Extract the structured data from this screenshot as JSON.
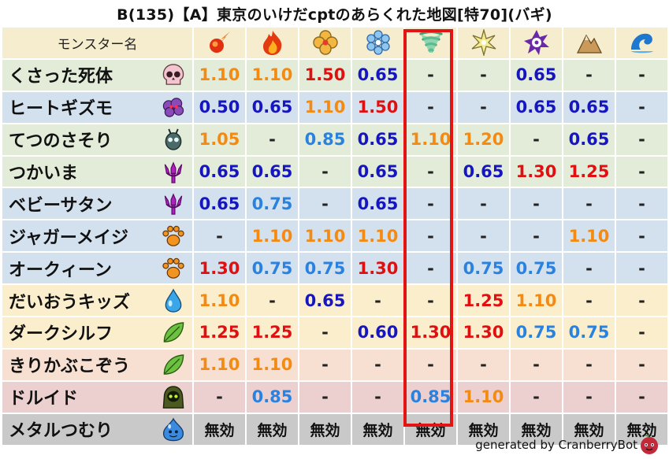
{
  "title": "B(135)【A】東京のいけだcptのあらくれた地図[特70](バギ)",
  "header": {
    "name_label": "モンスター名",
    "elements": [
      "fire-meteor-icon",
      "flame-icon",
      "clover-icon",
      "snowflake-icon",
      "tornado-icon",
      "burst-icon",
      "dark-spiral-icon",
      "mountain-icon",
      "wave-icon"
    ]
  },
  "highlight_column": 4,
  "rows": [
    {
      "name": "くさった死体",
      "bg": "#e3ecd8",
      "icon": "skull-icon",
      "cells": [
        [
          "1.10",
          "orange"
        ],
        [
          "1.10",
          "orange"
        ],
        [
          "1.50",
          "red"
        ],
        [
          "0.65",
          "navy"
        ],
        [
          "-",
          "dash"
        ],
        [
          "-",
          "dash"
        ],
        [
          "0.65",
          "navy"
        ],
        [
          "-",
          "dash"
        ],
        [
          "-",
          "dash"
        ]
      ]
    },
    {
      "name": "ヒートギズモ",
      "bg": "#d3e1ef",
      "icon": "purple-cloud-icon",
      "cells": [
        [
          "0.50",
          "navy"
        ],
        [
          "0.65",
          "navy"
        ],
        [
          "1.10",
          "orange"
        ],
        [
          "1.50",
          "red"
        ],
        [
          "-",
          "dash"
        ],
        [
          "-",
          "dash"
        ],
        [
          "0.65",
          "navy"
        ],
        [
          "0.65",
          "navy"
        ],
        [
          "-",
          "dash"
        ]
      ]
    },
    {
      "name": "てつのさそり",
      "bg": "#e3ecd8",
      "icon": "insect-icon",
      "cells": [
        [
          "1.05",
          "orange"
        ],
        [
          "-",
          "dash"
        ],
        [
          "0.85",
          "blue"
        ],
        [
          "0.65",
          "navy"
        ],
        [
          "1.10",
          "orange"
        ],
        [
          "1.20",
          "orange"
        ],
        [
          "-",
          "dash"
        ],
        [
          "0.65",
          "navy"
        ],
        [
          "-",
          "dash"
        ]
      ]
    },
    {
      "name": "つかいま",
      "bg": "#e3ecd8",
      "icon": "demon-trident-icon",
      "cells": [
        [
          "0.65",
          "navy"
        ],
        [
          "0.65",
          "navy"
        ],
        [
          "-",
          "dash"
        ],
        [
          "0.65",
          "navy"
        ],
        [
          "-",
          "dash"
        ],
        [
          "0.65",
          "navy"
        ],
        [
          "1.30",
          "red"
        ],
        [
          "1.25",
          "red"
        ],
        [
          "-",
          "dash"
        ]
      ]
    },
    {
      "name": "ベビーサタン",
      "bg": "#d3e1ef",
      "icon": "demon-trident-icon",
      "cells": [
        [
          "0.65",
          "navy"
        ],
        [
          "0.75",
          "blue"
        ],
        [
          "-",
          "dash"
        ],
        [
          "0.65",
          "navy"
        ],
        [
          "-",
          "dash"
        ],
        [
          "-",
          "dash"
        ],
        [
          "-",
          "dash"
        ],
        [
          "-",
          "dash"
        ],
        [
          "-",
          "dash"
        ]
      ]
    },
    {
      "name": "ジャガーメイジ",
      "bg": "#d3e1ef",
      "icon": "paw-icon",
      "cells": [
        [
          "-",
          "dash"
        ],
        [
          "1.10",
          "orange"
        ],
        [
          "1.10",
          "orange"
        ],
        [
          "1.10",
          "orange"
        ],
        [
          "-",
          "dash"
        ],
        [
          "-",
          "dash"
        ],
        [
          "-",
          "dash"
        ],
        [
          "1.10",
          "orange"
        ],
        [
          "-",
          "dash"
        ]
      ]
    },
    {
      "name": "オークィーン",
      "bg": "#d3e1ef",
      "icon": "paw-icon",
      "cells": [
        [
          "1.30",
          "red"
        ],
        [
          "0.75",
          "blue"
        ],
        [
          "0.75",
          "blue"
        ],
        [
          "1.30",
          "red"
        ],
        [
          "-",
          "dash"
        ],
        [
          "0.75",
          "blue"
        ],
        [
          "0.75",
          "blue"
        ],
        [
          "-",
          "dash"
        ],
        [
          "-",
          "dash"
        ]
      ]
    },
    {
      "name": "だいおうキッズ",
      "bg": "#fbeecc",
      "icon": "water-drop-icon",
      "cells": [
        [
          "1.10",
          "orange"
        ],
        [
          "-",
          "dash"
        ],
        [
          "0.65",
          "navy"
        ],
        [
          "-",
          "dash"
        ],
        [
          "-",
          "dash"
        ],
        [
          "1.25",
          "red"
        ],
        [
          "1.10",
          "orange"
        ],
        [
          "-",
          "dash"
        ],
        [
          "-",
          "dash"
        ]
      ]
    },
    {
      "name": "ダークシルフ",
      "bg": "#fbeecc",
      "icon": "leaf-icon",
      "cells": [
        [
          "1.25",
          "red"
        ],
        [
          "1.25",
          "red"
        ],
        [
          "-",
          "dash"
        ],
        [
          "0.60",
          "navy"
        ],
        [
          "1.30",
          "red"
        ],
        [
          "1.30",
          "red"
        ],
        [
          "0.75",
          "blue"
        ],
        [
          "0.75",
          "blue"
        ],
        [
          "-",
          "dash"
        ]
      ]
    },
    {
      "name": "きりかぶこぞう",
      "bg": "#f7e0d2",
      "icon": "leaf-icon",
      "cells": [
        [
          "1.10",
          "orange"
        ],
        [
          "1.10",
          "orange"
        ],
        [
          "-",
          "dash"
        ],
        [
          "-",
          "dash"
        ],
        [
          "-",
          "dash"
        ],
        [
          "-",
          "dash"
        ],
        [
          "-",
          "dash"
        ],
        [
          "-",
          "dash"
        ],
        [
          "-",
          "dash"
        ]
      ]
    },
    {
      "name": "ドルイド",
      "bg": "#eccfcf",
      "icon": "hooded-figure-icon",
      "cells": [
        [
          "-",
          "dash"
        ],
        [
          "0.85",
          "blue"
        ],
        [
          "-",
          "dash"
        ],
        [
          "-",
          "dash"
        ],
        [
          "0.85",
          "blue"
        ],
        [
          "1.10",
          "orange"
        ],
        [
          "-",
          "dash"
        ],
        [
          "-",
          "dash"
        ],
        [
          "-",
          "dash"
        ]
      ]
    },
    {
      "name": "メタルつむり",
      "bg": "#c9c9c9",
      "icon": "slime-icon",
      "cells": [
        [
          "無効",
          "null"
        ],
        [
          "無効",
          "null"
        ],
        [
          "無効",
          "null"
        ],
        [
          "無効",
          "null"
        ],
        [
          "無効",
          "null"
        ],
        [
          "無効",
          "null"
        ],
        [
          "無効",
          "null"
        ],
        [
          "無効",
          "null"
        ],
        [
          "無効",
          "null"
        ]
      ]
    }
  ],
  "footer": "generated by CranberryBot",
  "footer_icon": "cranberry-bot-icon"
}
